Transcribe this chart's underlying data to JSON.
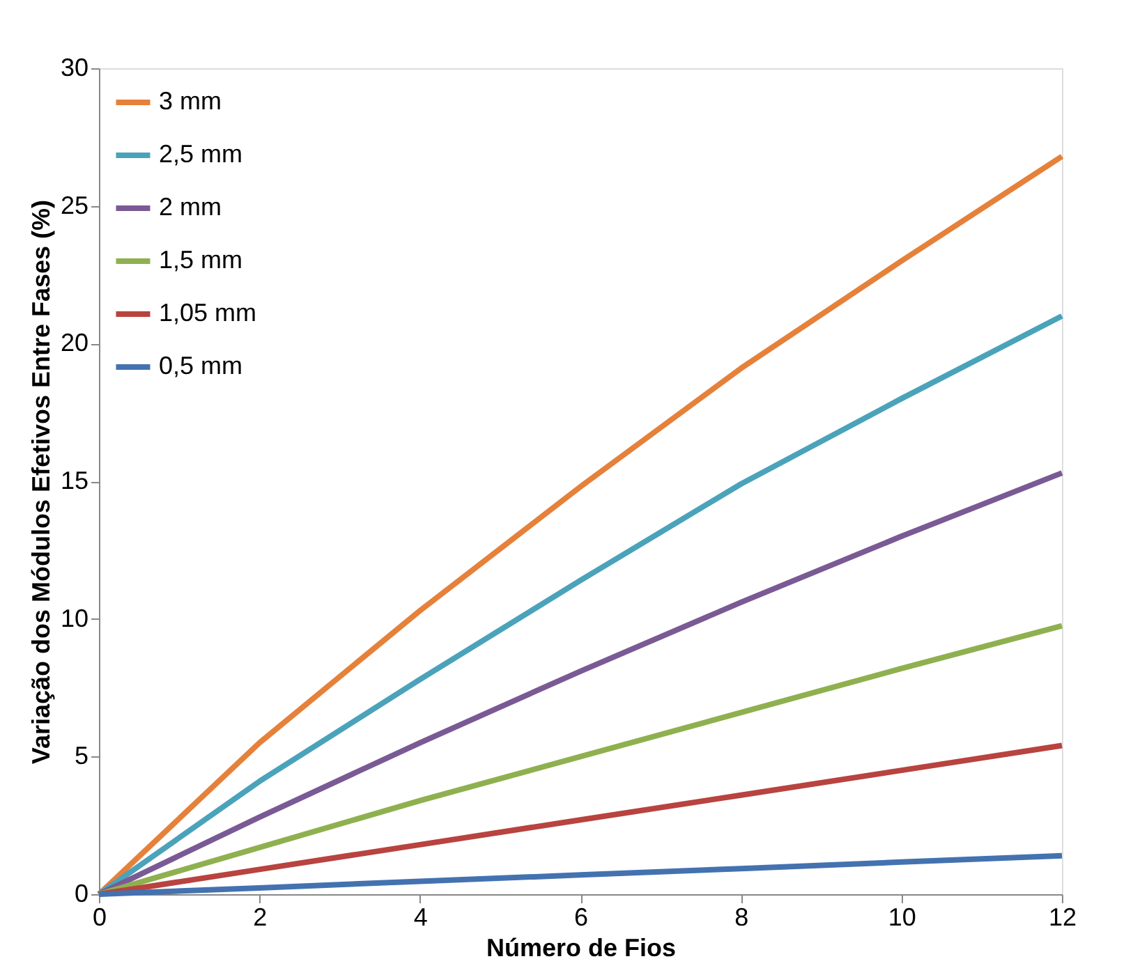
{
  "chart_data": {
    "type": "line",
    "xlabel": "Número de Fios",
    "ylabel": "Variação dos Módulos Efetivos Entre Fases (%)",
    "x": [
      0,
      2,
      4,
      6,
      8,
      10,
      12
    ],
    "series": [
      {
        "name": "3 mm",
        "color": "#e5813a",
        "values": [
          0,
          5.5,
          10.3,
          14.8,
          19.1,
          23.0,
          26.8
        ]
      },
      {
        "name": "2,5 mm",
        "color": "#4aa3ba",
        "values": [
          0,
          4.1,
          7.8,
          11.4,
          14.9,
          18.0,
          21.0
        ]
      },
      {
        "name": "2 mm",
        "color": "#7a5a95",
        "values": [
          0,
          2.8,
          5.5,
          8.1,
          10.6,
          13.0,
          15.3
        ]
      },
      {
        "name": "1,5 mm",
        "color": "#8fb04f",
        "values": [
          0,
          1.7,
          3.4,
          5.0,
          6.6,
          8.2,
          9.75
        ]
      },
      {
        "name": "1,05 mm",
        "color": "#b8433f",
        "values": [
          0,
          0.9,
          1.8,
          2.7,
          3.6,
          4.5,
          5.4
        ]
      },
      {
        "name": "0,5 mm",
        "color": "#4472b0",
        "values": [
          0,
          0.23,
          0.47,
          0.7,
          0.93,
          1.17,
          1.4
        ]
      }
    ],
    "xlim": [
      0,
      12
    ],
    "xticks": [
      0,
      2,
      4,
      6,
      8,
      10,
      12
    ],
    "ylim": [
      0,
      30
    ],
    "yticks": [
      0,
      5,
      10,
      15,
      20,
      25,
      30
    ],
    "grid": false,
    "legend": "top left",
    "marker": "none",
    "line_style": "solid"
  }
}
